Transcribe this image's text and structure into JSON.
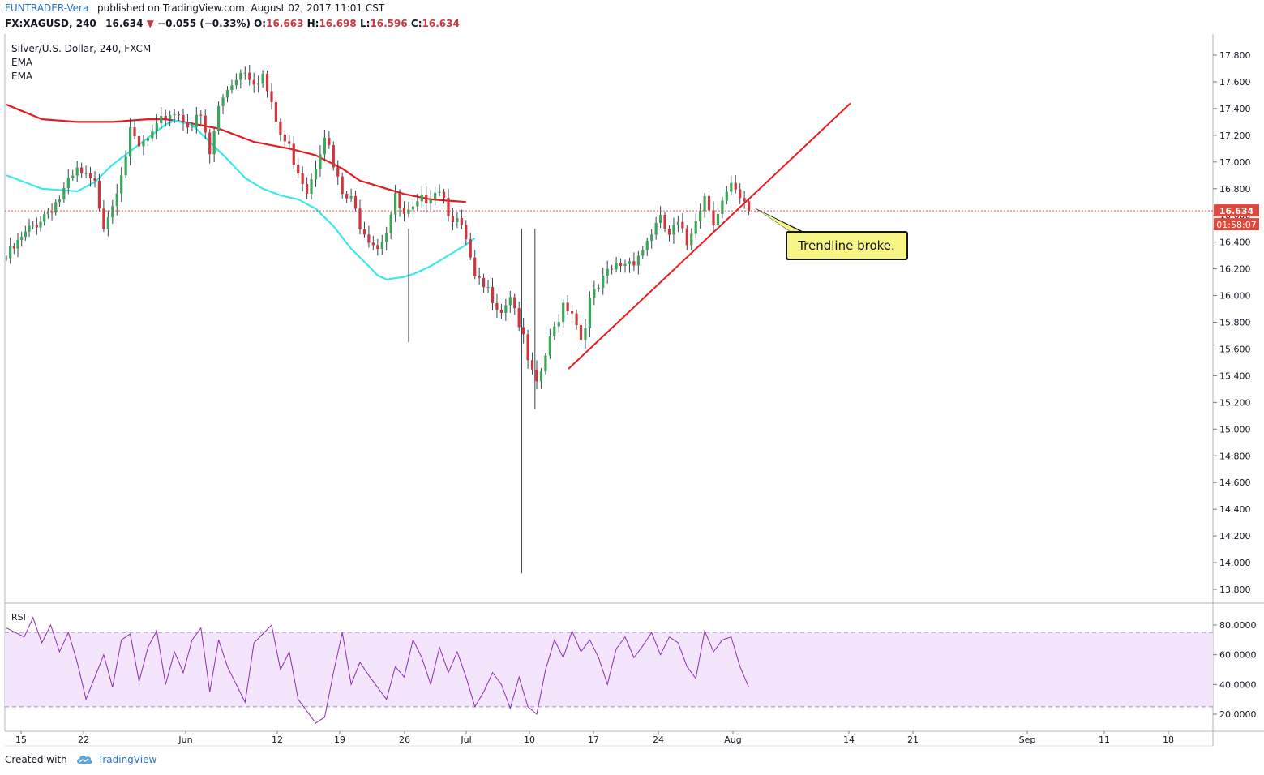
{
  "header": {
    "author": "FUNTRADER-Vera",
    "published_text": "published on TradingView.com, August 02, 2017 11:01 CST",
    "symbol": "FX:XAGUSD, 240",
    "last": "16.634",
    "change_arrow": "▼",
    "change": "−0.055 (−0.33%)",
    "o_label": "O:",
    "o_value": "16.663",
    "h_label": "H:",
    "h_value": "16.698",
    "l_label": "L:",
    "l_value": "16.596",
    "c_label": "C:",
    "c_value": "16.634"
  },
  "legend": {
    "title": "Silver/U.S. Dollar, 240, FXCM",
    "ema1": "EMA",
    "ema2": "EMA",
    "rsi": "RSI"
  },
  "colors": {
    "up": "#3aa65a",
    "down": "#d0343c",
    "wick": "#37474f",
    "ema_long": "#e31b23",
    "ema_short": "#3ee7e8",
    "trendline": "#ef1a1f",
    "rsi_line": "#8a2fb0",
    "rsi_band": "#f3e5fb",
    "price_tag": "#e0483b",
    "callout_fill": "#f6f586"
  },
  "price_label": "16.634",
  "countdown_label": "01:58:07",
  "annotation": {
    "text": "Trendline broke.",
    "icon": "callout-arrow"
  },
  "footer": {
    "created_with": "Created with",
    "brand": "TradingView",
    "logo_icon": "tradingview-cloud-icon"
  },
  "chart_data": {
    "type": "candlestick",
    "title": "Silver/U.S. Dollar, 240, FXCM",
    "ylim": [
      13.7,
      17.93
    ],
    "y_ticks": [
      "17.800",
      "17.600",
      "17.400",
      "17.200",
      "17.000",
      "16.800",
      "16.600",
      "16.400",
      "16.200",
      "16.000",
      "15.800",
      "15.600",
      "15.400",
      "15.200",
      "15.000",
      "14.800",
      "14.600",
      "14.400",
      "14.200",
      "14.000",
      "13.800"
    ],
    "x_ticks": [
      "15",
      "22",
      "Jun",
      "12",
      "19",
      "26",
      "Jul",
      "10",
      "17",
      "24",
      "Aug",
      "14",
      "21",
      "Sep",
      "11",
      "18"
    ],
    "last_price": 16.634,
    "close_path": [
      [
        0,
        16.28
      ],
      [
        3,
        16.52
      ],
      [
        6,
        16.73
      ],
      [
        8,
        16.92
      ],
      [
        10,
        16.82
      ],
      [
        11,
        16.55
      ],
      [
        12,
        16.7
      ],
      [
        13,
        16.95
      ],
      [
        14,
        17.2
      ],
      [
        15,
        17.1
      ],
      [
        17,
        17.23
      ],
      [
        18,
        17.35
      ],
      [
        19,
        17.38
      ],
      [
        21,
        17.28
      ],
      [
        22,
        17.33
      ],
      [
        23,
        17.05
      ],
      [
        24,
        17.4
      ],
      [
        25,
        17.55
      ],
      [
        26,
        17.65
      ],
      [
        27,
        17.7
      ],
      [
        28,
        17.62
      ],
      [
        29,
        17.65
      ],
      [
        30,
        17.4
      ],
      [
        31,
        17.2
      ],
      [
        32,
        17.1
      ],
      [
        33,
        16.95
      ],
      [
        34,
        16.8
      ],
      [
        35,
        17.0
      ],
      [
        36,
        17.23
      ],
      [
        37,
        16.95
      ],
      [
        38,
        16.75
      ],
      [
        39,
        16.7
      ],
      [
        40,
        16.55
      ],
      [
        41,
        16.45
      ],
      [
        42,
        16.38
      ],
      [
        43,
        16.5
      ],
      [
        44,
        16.72
      ],
      [
        45,
        16.58
      ],
      [
        46,
        16.62
      ],
      [
        47,
        16.7
      ],
      [
        48,
        16.78
      ],
      [
        49,
        16.82
      ],
      [
        50,
        16.65
      ],
      [
        51,
        16.55
      ],
      [
        52,
        16.4
      ],
      [
        53,
        16.1
      ],
      [
        54,
        16.05
      ],
      [
        55,
        16.0
      ],
      [
        56,
        15.9
      ],
      [
        57,
        16.02
      ],
      [
        58,
        15.8
      ],
      [
        59,
        15.5
      ],
      [
        60,
        15.3
      ],
      [
        61,
        15.55
      ],
      [
        62,
        15.75
      ],
      [
        63,
        15.95
      ],
      [
        64,
        15.9
      ],
      [
        65,
        15.68
      ],
      [
        66,
        15.95
      ],
      [
        67,
        16.05
      ],
      [
        68,
        16.15
      ],
      [
        69,
        16.22
      ],
      [
        70,
        16.25
      ],
      [
        71,
        16.28
      ],
      [
        72,
        16.35
      ],
      [
        73,
        16.48
      ],
      [
        74,
        16.55
      ],
      [
        75,
        16.45
      ],
      [
        76,
        16.52
      ],
      [
        77,
        16.38
      ],
      [
        78,
        16.6
      ],
      [
        79,
        16.75
      ],
      [
        80,
        16.58
      ],
      [
        81,
        16.7
      ],
      [
        82,
        16.8
      ],
      [
        83,
        16.7
      ],
      [
        84,
        16.63
      ]
    ],
    "ema_short_series": [
      [
        0,
        16.9
      ],
      [
        4,
        16.8
      ],
      [
        8,
        16.78
      ],
      [
        10,
        16.85
      ],
      [
        12,
        16.98
      ],
      [
        14,
        17.08
      ],
      [
        16,
        17.18
      ],
      [
        18,
        17.28
      ],
      [
        19,
        17.31
      ],
      [
        21,
        17.28
      ],
      [
        23,
        17.15
      ],
      [
        25,
        17.02
      ],
      [
        27,
        16.88
      ],
      [
        29,
        16.8
      ],
      [
        31,
        16.75
      ],
      [
        33,
        16.72
      ],
      [
        35,
        16.65
      ],
      [
        37,
        16.52
      ],
      [
        39,
        16.35
      ],
      [
        41,
        16.22
      ],
      [
        42,
        16.15
      ],
      [
        43,
        16.12
      ],
      [
        45,
        16.14
      ],
      [
        46,
        16.16
      ],
      [
        48,
        16.22
      ],
      [
        50,
        16.3
      ],
      [
        52,
        16.38
      ],
      [
        53,
        16.43
      ]
    ],
    "ema_long_series": [
      [
        0,
        17.43
      ],
      [
        4,
        17.32
      ],
      [
        8,
        17.3
      ],
      [
        12,
        17.3
      ],
      [
        16,
        17.32
      ],
      [
        18,
        17.32
      ],
      [
        20,
        17.3
      ],
      [
        24,
        17.25
      ],
      [
        28,
        17.15
      ],
      [
        32,
        17.1
      ],
      [
        35,
        17.05
      ],
      [
        38,
        16.95
      ],
      [
        40,
        16.86
      ],
      [
        43,
        16.8
      ],
      [
        45,
        16.76
      ],
      [
        48,
        16.72
      ],
      [
        50,
        16.71
      ],
      [
        52,
        16.7
      ]
    ],
    "trendline": {
      "from": [
        14,
        15.45
      ],
      "to": [
        34,
        17.44
      ]
    },
    "rsi": {
      "ylim": [
        10,
        92
      ],
      "y_ticks": [
        "80.0000",
        "60.0000",
        "40.0000",
        "20.0000"
      ],
      "band": [
        25,
        75
      ],
      "series": [
        [
          0,
          78
        ],
        [
          2,
          72
        ],
        [
          3,
          85
        ],
        [
          4,
          68
        ],
        [
          5,
          80
        ],
        [
          6,
          62
        ],
        [
          7,
          75
        ],
        [
          8,
          55
        ],
        [
          9,
          30
        ],
        [
          10,
          45
        ],
        [
          11,
          60
        ],
        [
          12,
          38
        ],
        [
          13,
          70
        ],
        [
          14,
          74
        ],
        [
          15,
          42
        ],
        [
          16,
          65
        ],
        [
          17,
          76
        ],
        [
          18,
          40
        ],
        [
          19,
          62
        ],
        [
          20,
          48
        ],
        [
          21,
          70
        ],
        [
          22,
          78
        ],
        [
          23,
          35
        ],
        [
          24,
          70
        ],
        [
          25,
          52
        ],
        [
          26,
          40
        ],
        [
          27,
          28
        ],
        [
          28,
          68
        ],
        [
          29,
          74
        ],
        [
          30,
          80
        ],
        [
          31,
          50
        ],
        [
          32,
          62
        ],
        [
          33,
          30
        ],
        [
          34,
          22
        ],
        [
          35,
          14
        ],
        [
          36,
          18
        ],
        [
          37,
          48
        ],
        [
          38,
          75
        ],
        [
          39,
          40
        ],
        [
          40,
          55
        ],
        [
          41,
          46
        ],
        [
          42,
          38
        ],
        [
          43,
          30
        ],
        [
          44,
          52
        ],
        [
          45,
          45
        ],
        [
          46,
          70
        ],
        [
          47,
          58
        ],
        [
          48,
          40
        ],
        [
          49,
          65
        ],
        [
          50,
          48
        ],
        [
          51,
          62
        ],
        [
          52,
          45
        ],
        [
          53,
          25
        ],
        [
          54,
          35
        ],
        [
          55,
          48
        ],
        [
          56,
          40
        ],
        [
          57,
          24
        ],
        [
          58,
          45
        ],
        [
          59,
          25
        ],
        [
          60,
          20
        ],
        [
          61,
          50
        ],
        [
          62,
          70
        ],
        [
          63,
          58
        ],
        [
          64,
          76
        ],
        [
          65,
          62
        ],
        [
          66,
          70
        ],
        [
          67,
          58
        ],
        [
          68,
          40
        ],
        [
          69,
          64
        ],
        [
          70,
          72
        ],
        [
          71,
          58
        ],
        [
          72,
          66
        ],
        [
          73,
          75
        ],
        [
          74,
          60
        ],
        [
          75,
          72
        ],
        [
          76,
          68
        ],
        [
          77,
          52
        ],
        [
          78,
          44
        ],
        [
          79,
          76
        ],
        [
          80,
          62
        ],
        [
          81,
          70
        ],
        [
          82,
          72
        ],
        [
          83,
          52
        ],
        [
          84,
          38
        ]
      ]
    }
  }
}
